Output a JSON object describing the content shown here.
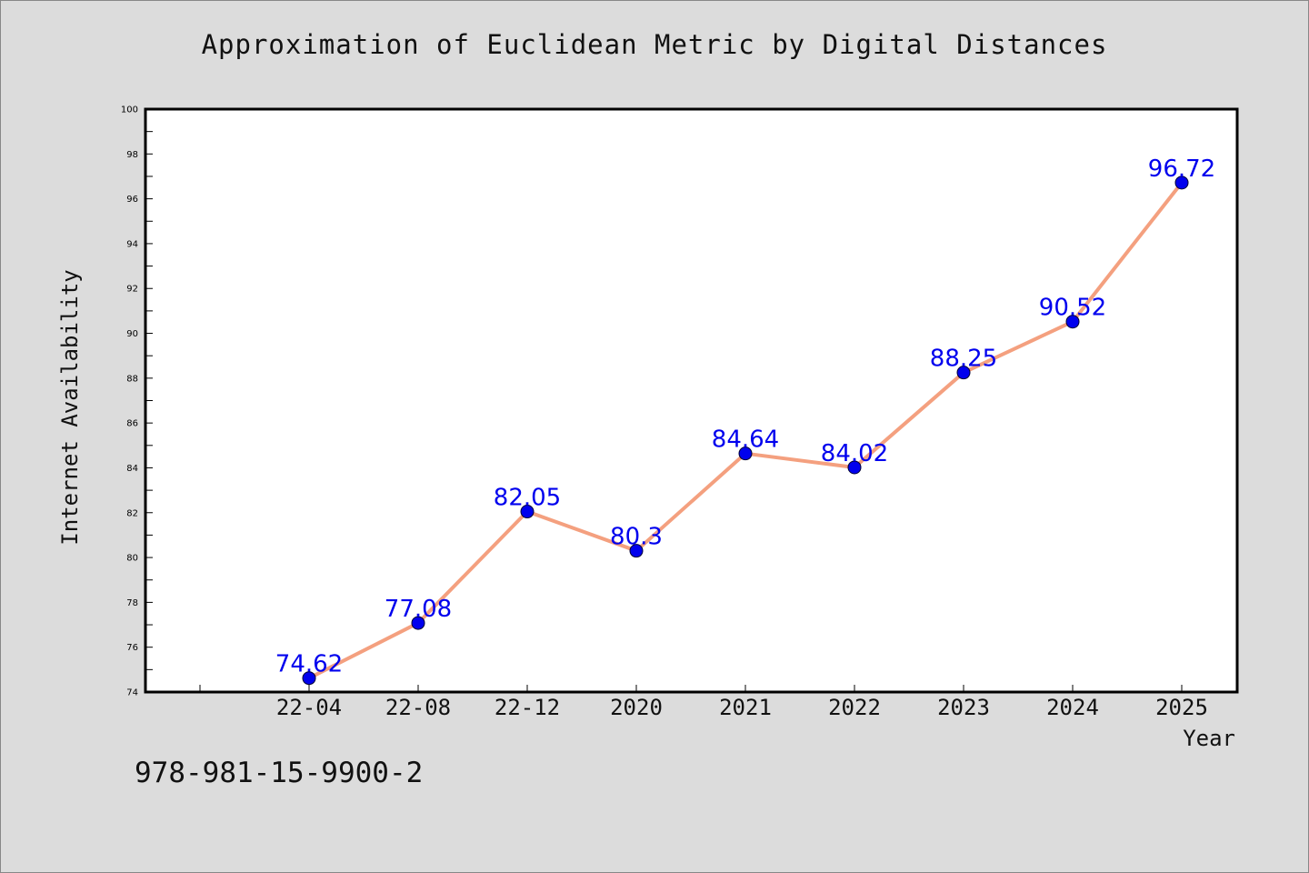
{
  "chart_data": {
    "type": "line",
    "title": "Approximation of Euclidean Metric by Digital Distances",
    "xlabel": "Year",
    "ylabel": "Internet Availability",
    "categories": [
      "22-04",
      "22-08",
      "22-12",
      "2020",
      "2021",
      "2022",
      "2023",
      "2024",
      "2025"
    ],
    "series": [
      {
        "values": [
          74.62,
          77.08,
          82.05,
          80.3,
          84.64,
          84.02,
          88.25,
          90.52,
          96.72
        ]
      }
    ],
    "data_labels": [
      "74.62",
      "77.08",
      "82.05",
      "80.3",
      "84.64",
      "84.02",
      "88.25",
      "90.52",
      "96.72"
    ],
    "ylim": [
      74,
      100
    ],
    "yticks": [
      74,
      76,
      78,
      80,
      82,
      84,
      86,
      88,
      90,
      92,
      94,
      96,
      98,
      100
    ],
    "grid": false,
    "colors": {
      "line": "#f4a07f",
      "marker": "#0000ee",
      "label": "#0000ee",
      "plot_background": "#ffffff",
      "page_background": "#dcdcdc"
    }
  },
  "footnote": "978-981-15-9900-2"
}
